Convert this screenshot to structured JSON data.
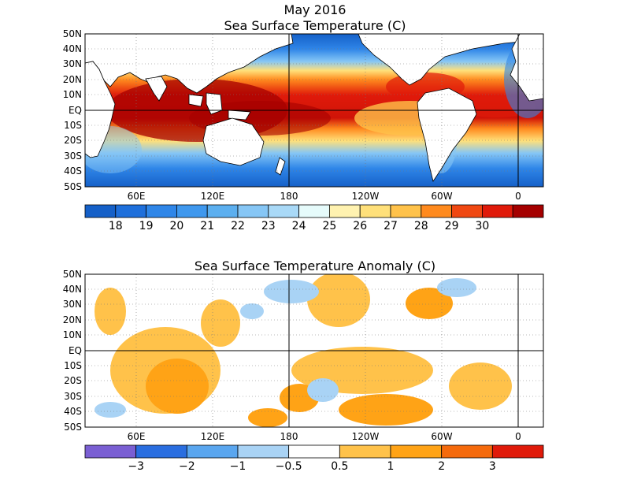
{
  "header": {
    "date": "May 2016",
    "sst_title": "Sea Surface Temperature (C)",
    "anom_title": "Sea Surface Temperature Anomaly (C)"
  },
  "axes": {
    "lat_labels": [
      "50N",
      "40N",
      "30N",
      "20N",
      "10N",
      "EQ",
      "10S",
      "20S",
      "30S",
      "40S",
      "50S"
    ],
    "lon_labels": [
      "60E",
      "120E",
      "180",
      "120W",
      "60W",
      "0"
    ]
  },
  "sst_colorbar": {
    "colors": [
      "#1560c8",
      "#1e6fdb",
      "#2f86e8",
      "#3f98ee",
      "#5cafef",
      "#86c6f5",
      "#a9d9f7",
      "#e6fbfb",
      "#fff2b0",
      "#ffe07a",
      "#ffc24a",
      "#ff8a1e",
      "#f04812",
      "#e01a0a",
      "#a50000"
    ],
    "labels": [
      "18",
      "19",
      "20",
      "21",
      "22",
      "23",
      "24",
      "25",
      "26",
      "27",
      "28",
      "29",
      "30"
    ]
  },
  "anom_colorbar": {
    "colors": [
      "#7a5fd3",
      "#2a6ee0",
      "#5aa6ef",
      "#a9d3f5",
      "#ffffff",
      "#ffc24a",
      "#ffa316",
      "#f56a0c",
      "#e01a0a"
    ],
    "labels": [
      "-3",
      "-2",
      "-1",
      "-0.5",
      "0.5",
      "1",
      "2",
      "3"
    ]
  }
}
